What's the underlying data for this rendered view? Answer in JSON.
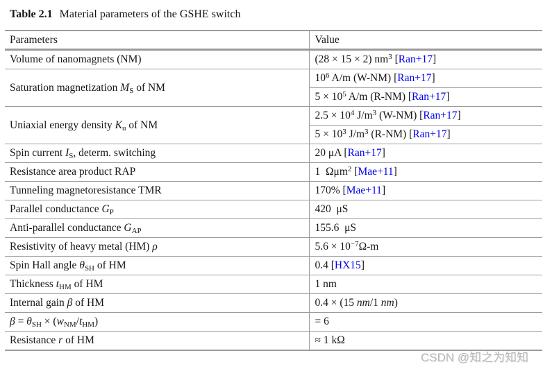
{
  "caption": {
    "label": "Table 2.1",
    "text": "Material parameters of the GSHE switch"
  },
  "columns": {
    "parameters": "Parameters",
    "value": "Value"
  },
  "colors": {
    "citation": "#0000ee",
    "rule": "#9c9c9c",
    "rule_thick": "#9a9a9a",
    "text": "#161616",
    "watermark": "#b6b6b6"
  },
  "watermark": "CSDN @知之为知知",
  "table": {
    "rows": [
      {
        "param": [
          {
            "t": "Volume of nanomagnets (NM)"
          }
        ],
        "values": [
          [
            {
              "t": "(28 × 15 × 2) nm"
            },
            {
              "sup": "3"
            },
            {
              "t": " "
            },
            {
              "cite": "Ran+17"
            }
          ]
        ]
      },
      {
        "param": [
          {
            "t": "Saturation magnetization "
          },
          {
            "i": "M"
          },
          {
            "sub": "S"
          },
          {
            "t": " of NM"
          }
        ],
        "values": [
          [
            {
              "t": "10"
            },
            {
              "sup": "6"
            },
            {
              "t": " A/m (W-NM) "
            },
            {
              "cite": "Ran+17"
            }
          ],
          [
            {
              "t": "5 × 10"
            },
            {
              "sup": "5"
            },
            {
              "t": " A/m (R-NM) "
            },
            {
              "cite": "Ran+17"
            }
          ]
        ]
      },
      {
        "param": [
          {
            "t": "Uniaxial energy density "
          },
          {
            "i": "K"
          },
          {
            "sub": "u"
          },
          {
            "t": " of NM"
          }
        ],
        "values": [
          [
            {
              "t": "2.5 × 10"
            },
            {
              "sup": "4"
            },
            {
              "t": " J/m"
            },
            {
              "sup": "3"
            },
            {
              "t": " (W-NM) "
            },
            {
              "cite": "Ran+17"
            }
          ],
          [
            {
              "t": "5 × 10"
            },
            {
              "sup": "3"
            },
            {
              "t": " J/m"
            },
            {
              "sup": "3"
            },
            {
              "t": " (R-NM) "
            },
            {
              "cite": "Ran+17"
            }
          ]
        ]
      },
      {
        "param": [
          {
            "t": "Spin current "
          },
          {
            "i": "I"
          },
          {
            "sub": "S"
          },
          {
            "t": ", determ. switching"
          }
        ],
        "values": [
          [
            {
              "t": "20 μA "
            },
            {
              "cite": "Ran+17"
            }
          ]
        ]
      },
      {
        "param": [
          {
            "t": "Resistance area product RAP"
          }
        ],
        "values": [
          [
            {
              "t": "1 Ωμm"
            },
            {
              "sup": "2"
            },
            {
              "t": " "
            },
            {
              "cite": "Mae+11"
            }
          ]
        ]
      },
      {
        "param": [
          {
            "t": "Tunneling magnetoresistance TMR"
          }
        ],
        "values": [
          [
            {
              "t": "170% "
            },
            {
              "cite": "Mae+11"
            }
          ]
        ]
      },
      {
        "param": [
          {
            "t": "Parallel conductance "
          },
          {
            "i": "G"
          },
          {
            "sub": "P"
          }
        ],
        "values": [
          [
            {
              "t": "420 μS"
            }
          ]
        ]
      },
      {
        "param": [
          {
            "t": "Anti-parallel conductance "
          },
          {
            "i": "G"
          },
          {
            "sub": "AP"
          }
        ],
        "values": [
          [
            {
              "t": "155.6 μS"
            }
          ]
        ]
      },
      {
        "param": [
          {
            "t": "Resistivity of heavy metal (HM) "
          },
          {
            "i": "ρ"
          }
        ],
        "values": [
          [
            {
              "t": "5.6 × 10"
            },
            {
              "sup": "−7"
            },
            {
              "t": "Ω-m"
            }
          ]
        ]
      },
      {
        "param": [
          {
            "t": "Spin Hall angle "
          },
          {
            "i": "θ"
          },
          {
            "sub": "SH"
          },
          {
            "t": " of HM"
          }
        ],
        "values": [
          [
            {
              "t": "0.4 "
            },
            {
              "cite": "HX15"
            }
          ]
        ]
      },
      {
        "param": [
          {
            "t": "Thickness "
          },
          {
            "i": "t"
          },
          {
            "sub": "HM"
          },
          {
            "t": " of HM"
          }
        ],
        "values": [
          [
            {
              "t": "1 nm"
            }
          ]
        ]
      },
      {
        "param": [
          {
            "t": "Internal gain "
          },
          {
            "i": "β"
          },
          {
            "t": " of HM"
          }
        ],
        "values": [
          [
            {
              "t": "0.4 × (15 "
            },
            {
              "i": "nm"
            },
            {
              "t": "/1 "
            },
            {
              "i": "nm"
            },
            {
              "t": ")"
            }
          ]
        ]
      },
      {
        "param": [
          {
            "i": "β"
          },
          {
            "t": " = "
          },
          {
            "i": "θ"
          },
          {
            "sub": "SH"
          },
          {
            "t": " × ("
          },
          {
            "i": "w"
          },
          {
            "sub": "NM"
          },
          {
            "t": "/"
          },
          {
            "i": "t"
          },
          {
            "sub": "HM"
          },
          {
            "t": ")"
          }
        ],
        "values": [
          [
            {
              "t": "= 6"
            }
          ]
        ]
      },
      {
        "param": [
          {
            "t": "Resistance "
          },
          {
            "i": "r"
          },
          {
            "t": " of HM"
          }
        ],
        "values": [
          [
            {
              "t": "≈ 1 kΩ"
            }
          ]
        ]
      }
    ]
  }
}
